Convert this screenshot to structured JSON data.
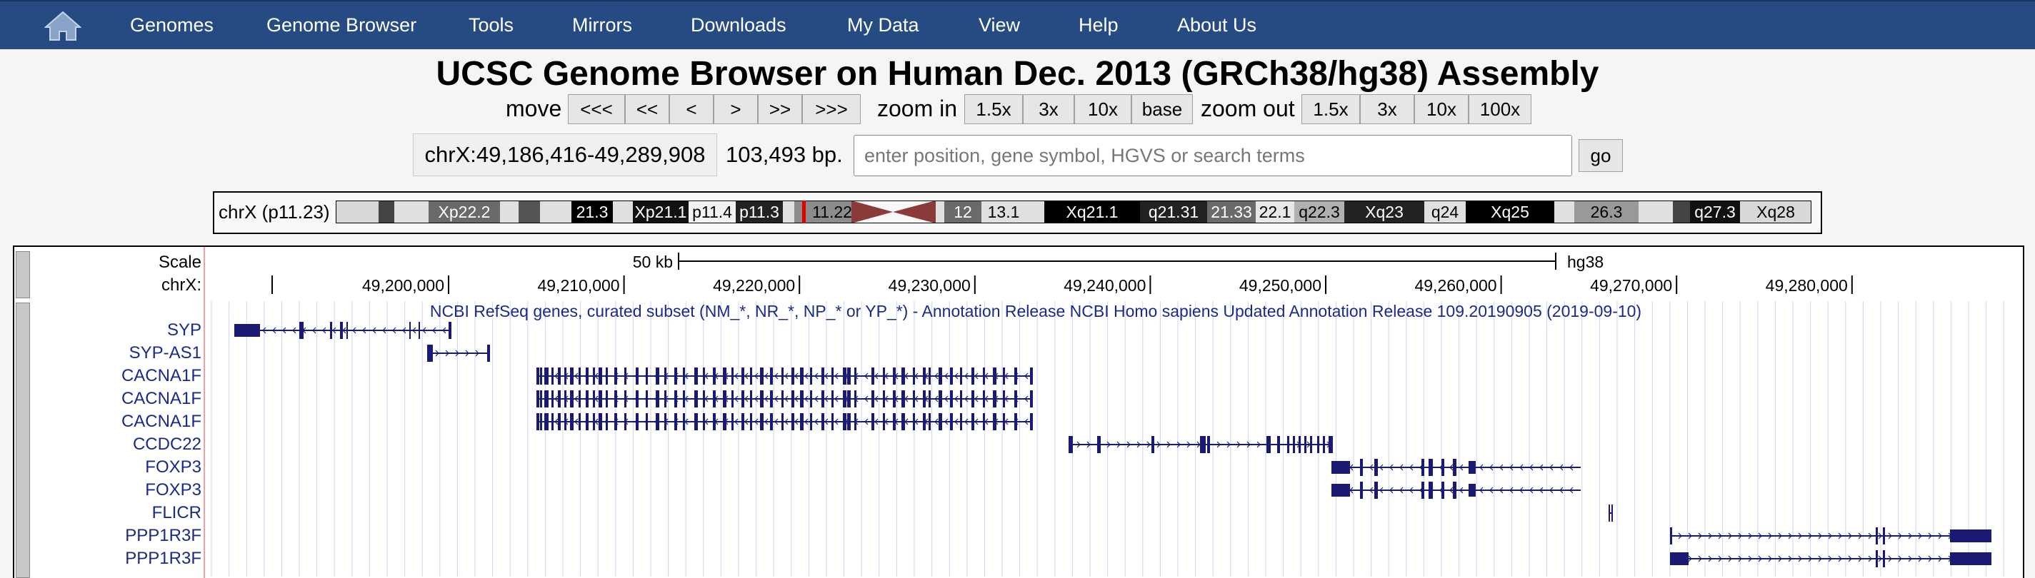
{
  "navbar": {
    "home_icon": "home-icon",
    "items": [
      "Genomes",
      "Genome Browser",
      "Tools",
      "Mirrors",
      "Downloads",
      "My Data",
      "View",
      "Help",
      "About Us"
    ]
  },
  "title": "UCSC Genome Browser on Human Dec. 2013 (GRCh38/hg38) Assembly",
  "controls": {
    "move_label": "move",
    "move_buttons": [
      "<<<",
      "<<",
      "<",
      ">",
      ">>",
      ">>>"
    ],
    "zoom_in_label": "zoom in",
    "zoom_in_buttons": [
      "1.5x",
      "3x",
      "10x",
      "base"
    ],
    "zoom_out_label": "zoom out",
    "zoom_out_buttons": [
      "1.5x",
      "3x",
      "10x",
      "100x"
    ]
  },
  "position": {
    "value": "chrX:49,186,416-49,289,908",
    "size": "103,493 bp.",
    "search_placeholder": "enter position, gene symbol, HGVS or search terms",
    "go_label": "go"
  },
  "ideogram": {
    "label": "chrX (p11.23)",
    "bands": [
      "Xp22.2",
      "21.3",
      "Xp21.1",
      "p11.4",
      "p11.3",
      "11.22",
      "12",
      "13.1",
      "Xq21.1",
      "q21.31",
      "21.33",
      "22.1",
      "q22.3",
      "Xq23",
      "q24",
      "Xq25",
      "26.3",
      "q27.3",
      "Xq28"
    ]
  },
  "tracks": {
    "scale_label": "Scale",
    "scale_value": "50 kb",
    "assembly": "hg38",
    "chrom_label": "chrX:",
    "ticks": [
      "49,200,000",
      "49,210,000",
      "49,220,000",
      "49,230,000",
      "49,240,000",
      "49,250,000",
      "49,260,000",
      "49,270,000",
      "49,280,000"
    ],
    "refseq_title": "NCBI RefSeq genes, curated subset (NM_*, NR_*, NP_* or YP_*) - Annotation Release NCBI Homo sapiens Updated Annotation Release 109.20190905 (2019-09-10)",
    "genes": [
      "SYP",
      "SYP-AS1",
      "CACNA1F",
      "CACNA1F",
      "CACNA1F",
      "CCDC22",
      "FOXP3",
      "FOXP3",
      "FLICR",
      "PPP1R3F",
      "PPP1R3F"
    ],
    "gene_color": "#1a1a73"
  }
}
